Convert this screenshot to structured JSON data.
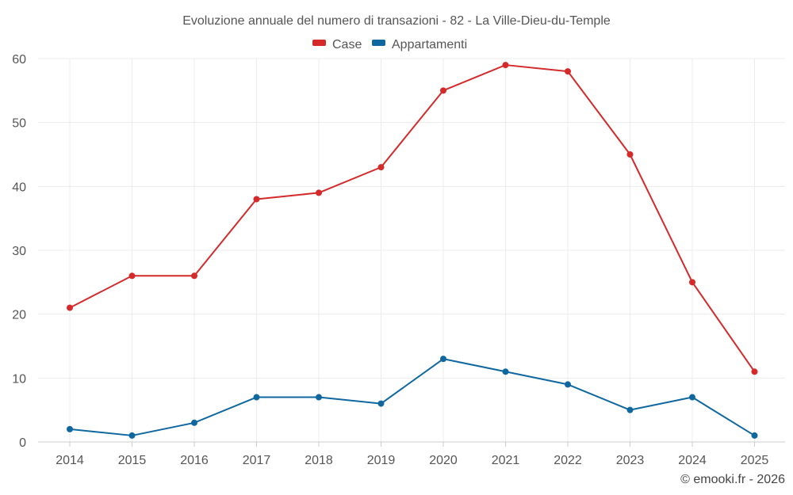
{
  "chart_data": {
    "type": "line",
    "title": "Evoluzione annuale del numero di transazioni - 82 - La Ville-Dieu-du-Temple",
    "categories": [
      "2014",
      "2015",
      "2016",
      "2017",
      "2018",
      "2019",
      "2020",
      "2021",
      "2022",
      "2023",
      "2024",
      "2025"
    ],
    "series": [
      {
        "name": "Case",
        "color": "#d42a2a",
        "values": [
          21,
          26,
          26,
          38,
          39,
          43,
          55,
          59,
          58,
          45,
          25,
          11
        ]
      },
      {
        "name": "Appartamenti",
        "color": "#0f67a0",
        "values": [
          2,
          1,
          3,
          7,
          7,
          6,
          13,
          11,
          9,
          5,
          7,
          1
        ]
      }
    ],
    "yticks": [
      "0",
      "10",
      "20",
      "30",
      "40",
      "50",
      "60"
    ],
    "ylim": [
      0,
      60
    ],
    "grid": true,
    "legend": "top-center",
    "xlabel": "",
    "ylabel": ""
  },
  "credit": "© emooki.fr - 2026"
}
